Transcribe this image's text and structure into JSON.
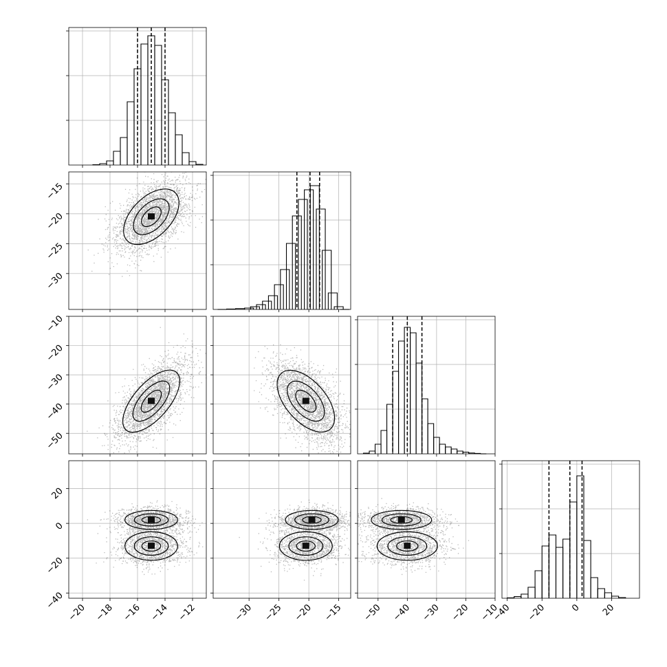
{
  "chart_data": {
    "type": "corner",
    "grid_on": true,
    "params": [
      {
        "range": [
          -21,
          -11
        ],
        "ticks": [
          -20,
          -18,
          -16,
          -14,
          -12
        ],
        "tick_labels": [
          "−20",
          "−18",
          "−16",
          "−14",
          "−12"
        ],
        "quantiles": [
          -16.0,
          -15.0,
          -14.0
        ],
        "hist": [
          [
            -19.0,
            0.002
          ],
          [
            -18.5,
            0.01
          ],
          [
            -18.0,
            0.03
          ],
          [
            -17.5,
            0.1
          ],
          [
            -17.0,
            0.2
          ],
          [
            -16.5,
            0.46
          ],
          [
            -16.0,
            0.7
          ],
          [
            -15.5,
            0.88
          ],
          [
            -15.0,
            0.94
          ],
          [
            -14.5,
            0.87
          ],
          [
            -14.0,
            0.62
          ],
          [
            -13.5,
            0.38
          ],
          [
            -13.0,
            0.22
          ],
          [
            -12.5,
            0.09
          ],
          [
            -12.0,
            0.025
          ],
          [
            -11.5,
            0.005
          ]
        ]
      },
      {
        "range": [
          -36,
          -13
        ],
        "ticks": [
          -30,
          -25,
          -20,
          -15
        ],
        "tick_labels": [
          "−30",
          "−25",
          "−20",
          "−15"
        ],
        "quantiles": [
          -22.0,
          -19.8,
          -18.2
        ],
        "hist": [
          [
            -34.5,
            0.0
          ],
          [
            -33.0,
            0.003
          ],
          [
            -31.5,
            0.006
          ],
          [
            -30.0,
            0.01
          ],
          [
            -29.0,
            0.02
          ],
          [
            -28.0,
            0.035
          ],
          [
            -27.0,
            0.06
          ],
          [
            -26.0,
            0.1
          ],
          [
            -25.0,
            0.18
          ],
          [
            -24.0,
            0.29
          ],
          [
            -23.0,
            0.48
          ],
          [
            -22.0,
            0.68
          ],
          [
            -21.0,
            0.8
          ],
          [
            -20.0,
            0.87
          ],
          [
            -19.0,
            0.9
          ],
          [
            -18.0,
            0.73
          ],
          [
            -17.0,
            0.43
          ],
          [
            -16.0,
            0.12
          ],
          [
            -15.0,
            0.02
          ],
          [
            -14.0,
            0.0
          ]
        ]
      },
      {
        "range": [
          -57,
          -10
        ],
        "ticks": [
          -50,
          -40,
          -30,
          -20,
          -10
        ],
        "tick_labels": [
          "−50",
          "−40",
          "−30",
          "−20",
          "−10"
        ],
        "quantiles": [
          -45.0,
          -40.0,
          -35.0
        ],
        "hist": [
          [
            -54.0,
            0.005
          ],
          [
            -52.0,
            0.02
          ],
          [
            -50.0,
            0.07
          ],
          [
            -48.0,
            0.17
          ],
          [
            -46.0,
            0.36
          ],
          [
            -44.0,
            0.6
          ],
          [
            -42.0,
            0.82
          ],
          [
            -40.0,
            0.92
          ],
          [
            -38.0,
            0.88
          ],
          [
            -36.0,
            0.66
          ],
          [
            -34.0,
            0.4
          ],
          [
            -32.0,
            0.22
          ],
          [
            -30.0,
            0.12
          ],
          [
            -28.0,
            0.07
          ],
          [
            -26.0,
            0.05
          ],
          [
            -24.0,
            0.035
          ],
          [
            -22.0,
            0.02
          ],
          [
            -20.0,
            0.012
          ],
          [
            -18.0,
            0.006
          ],
          [
            -16.0,
            0.003
          ],
          [
            -14.0,
            0.0
          ]
        ]
      },
      {
        "range": [
          -43,
          36
        ],
        "ticks": [
          -40,
          -20,
          0,
          20
        ],
        "tick_labels": [
          "−40",
          "−20",
          "0",
          "20"
        ],
        "quantiles": [
          -16.0,
          -4.0,
          3.0
        ],
        "hist": [
          [
            -38.0,
            0.003
          ],
          [
            -34.0,
            0.012
          ],
          [
            -30.0,
            0.03
          ],
          [
            -26.0,
            0.08
          ],
          [
            -22.0,
            0.2
          ],
          [
            -18.0,
            0.38
          ],
          [
            -14.0,
            0.46
          ],
          [
            -10.0,
            0.37
          ],
          [
            -6.0,
            0.43
          ],
          [
            -2.0,
            0.7
          ],
          [
            2.0,
            0.89
          ],
          [
            6.0,
            0.42
          ],
          [
            10.0,
            0.15
          ],
          [
            14.0,
            0.07
          ],
          [
            18.0,
            0.04
          ],
          [
            22.0,
            0.015
          ],
          [
            26.0,
            0.005
          ]
        ]
      }
    ],
    "y_axis_ticks": {
      "1": {
        "ticks": [
          -15,
          -20,
          -25,
          -30
        ],
        "tick_labels": [
          "−15",
          "−20",
          "−25",
          "−30"
        ]
      },
      "2": {
        "ticks": [
          -10,
          -20,
          -30,
          -40,
          -50
        ],
        "tick_labels": [
          "−10",
          "−20",
          "−30",
          "−40",
          "−50"
        ]
      },
      "3": {
        "ticks": [
          20,
          0,
          -20,
          -40
        ],
        "tick_labels": [
          "20",
          "0",
          "−20",
          "−40"
        ]
      }
    },
    "pairs": [
      {
        "row": 1,
        "col": 0,
        "mean": [
          -15.0,
          -20.5
        ],
        "sd": [
          1.3,
          3.0
        ],
        "rho": 0.5,
        "modes": []
      },
      {
        "row": 2,
        "col": 0,
        "mean": [
          -15.0,
          -39.0
        ],
        "sd": [
          1.3,
          7.0
        ],
        "rho": 0.65,
        "modes": []
      },
      {
        "row": 2,
        "col": 1,
        "mean": [
          -20.5,
          -39.0
        ],
        "sd": [
          3.0,
          7.0
        ],
        "rho": -0.55,
        "modes": []
      },
      {
        "row": 3,
        "col": 0,
        "mean": [
          -15.0,
          -6.0
        ],
        "sd": [
          1.3,
          11.0
        ],
        "rho": 0.0,
        "modes": [
          [
            -15.0,
            2.0
          ],
          [
            -15.0,
            -13.0
          ]
        ]
      },
      {
        "row": 3,
        "col": 1,
        "mean": [
          -20.5,
          -6.0
        ],
        "sd": [
          3.0,
          11.0
        ],
        "rho": 0.0,
        "modes": [
          [
            -19.5,
            2.0
          ],
          [
            -20.5,
            -13.0
          ]
        ]
      },
      {
        "row": 3,
        "col": 2,
        "mean": [
          -40.0,
          -6.0
        ],
        "sd": [
          7.0,
          11.0
        ],
        "rho": 0.0,
        "modes": [
          [
            -42.0,
            2.0
          ],
          [
            -40.0,
            -13.0
          ]
        ]
      }
    ]
  }
}
